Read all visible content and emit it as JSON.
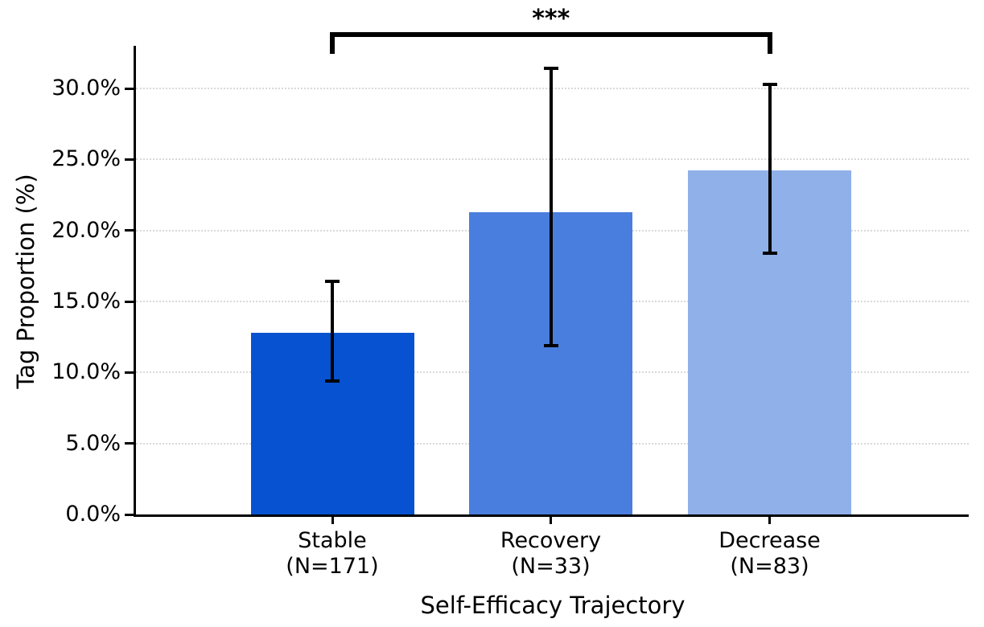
{
  "figure": {
    "background_color": "#ffffff",
    "text_color": "#000000"
  },
  "chart_data": {
    "type": "bar",
    "title": "",
    "xlabel": "Self-Efficacy Trajectory",
    "ylabel": "Tag Proportion (%)",
    "categories": [
      "Stable",
      "Recovery",
      "Decrease"
    ],
    "category_sublabels": [
      "(N=171)",
      "(N=33)",
      "(N=83)"
    ],
    "values": [
      12.8,
      21.3,
      24.2
    ],
    "error_low": [
      9.4,
      11.9,
      18.4
    ],
    "error_high": [
      16.4,
      31.4,
      30.3
    ],
    "bar_colors": [
      "#0652d0",
      "#4a7ede",
      "#8fb0e8"
    ],
    "ylim": [
      0,
      33
    ],
    "yticks": [
      0,
      5,
      10,
      15,
      20,
      25,
      30
    ],
    "ytick_labels": [
      "0.0%",
      "5.0%",
      "10.0%",
      "15.0%",
      "20.0%",
      "25.0%",
      "30.0%"
    ],
    "grid": "horizontal-dotted",
    "grid_color": "#d9d9d9",
    "legend": "none",
    "significance": {
      "from": "Stable",
      "to": "Decrease",
      "label": "***"
    }
  }
}
